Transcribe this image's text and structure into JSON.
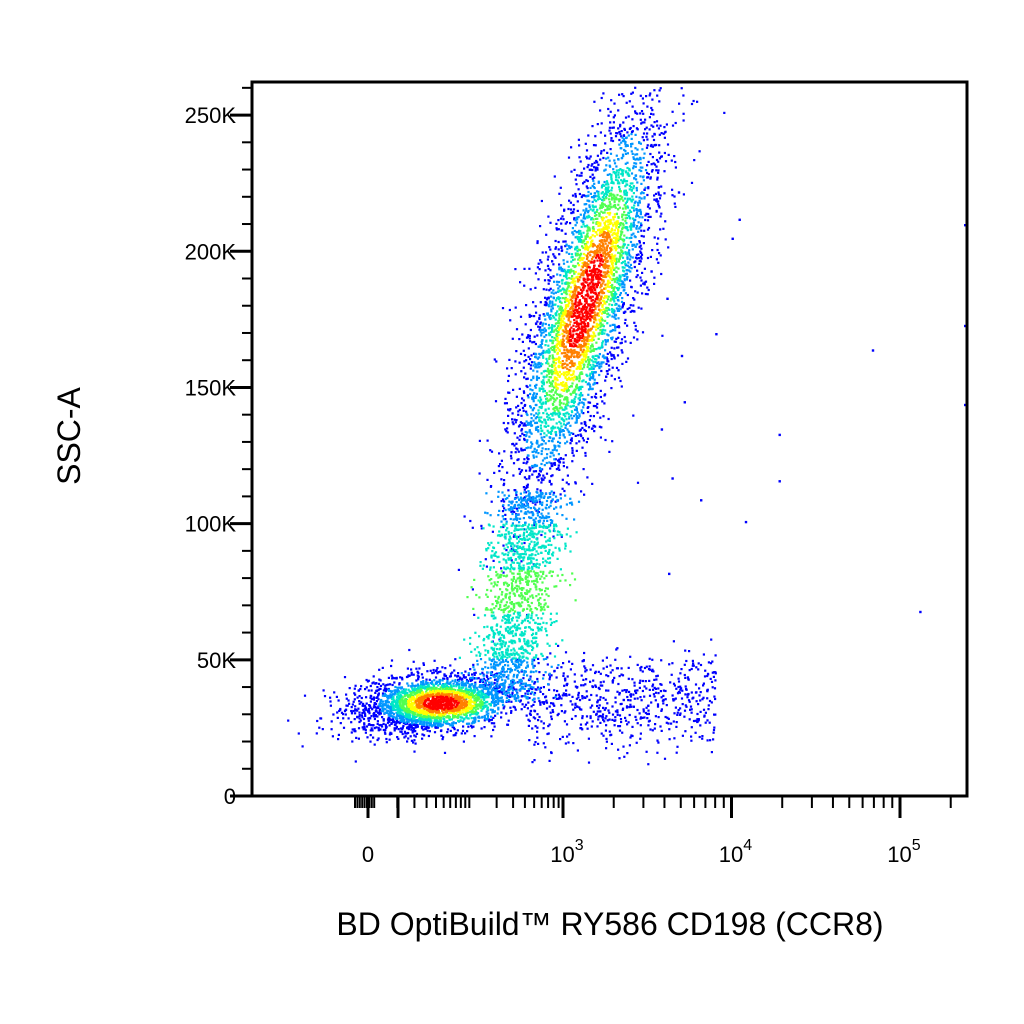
{
  "chart_data": {
    "type": "scatter",
    "subtype": "flow-cytometry-pseudocolor-density",
    "xlabel": "BD OptiBuild™ RY586 CD198 (CCR8)",
    "ylabel": "SSC-A",
    "x_scale": "biexponential",
    "y_scale": "linear",
    "ylim": [
      0,
      262144
    ],
    "xlim": [
      -300,
      262144
    ],
    "x_ticks": [
      {
        "value": 0,
        "label": "0"
      },
      {
        "value": 1000,
        "base": "10",
        "exp": "3"
      },
      {
        "value": 10000,
        "base": "10",
        "exp": "4"
      },
      {
        "value": 100000,
        "base": "10",
        "exp": "5"
      }
    ],
    "y_ticks": [
      {
        "value": 0,
        "label": "0"
      },
      {
        "value": 50000,
        "label": "50K"
      },
      {
        "value": 100000,
        "label": "100K"
      },
      {
        "value": 150000,
        "label": "150K"
      },
      {
        "value": 200000,
        "label": "200K"
      },
      {
        "value": 250000,
        "label": "250K"
      }
    ],
    "grid": false,
    "legend": "none",
    "colormap": [
      "#0000ff",
      "#0096ff",
      "#00e6c8",
      "#50ff50",
      "#ffff00",
      "#ff8000",
      "#ff0000"
    ],
    "populations": [
      {
        "x_center": 180,
        "y_center": 32000,
        "density": "high",
        "description_free": true
      },
      {
        "x_center": 550,
        "y_center": 75000,
        "density": "medium"
      },
      {
        "x_center": 1400,
        "y_center": 180000,
        "density": "highest"
      },
      {
        "x_center": 2500,
        "y_center": 34000,
        "density": "low"
      }
    ],
    "outliers": [
      {
        "x": 3000,
        "y": 223000
      },
      {
        "x": 4800,
        "y": 222000
      },
      {
        "x": 11000,
        "y": 212000
      },
      {
        "x": 10000,
        "y": 205000
      },
      {
        "x": 8000,
        "y": 170000
      },
      {
        "x": 19000,
        "y": 133000
      },
      {
        "x": 19000,
        "y": 116000
      },
      {
        "x": 12000,
        "y": 101000
      },
      {
        "x": 6500,
        "y": 109000
      },
      {
        "x": 68000,
        "y": 164000
      },
      {
        "x": 130000,
        "y": 68000
      },
      {
        "x": 250000,
        "y": 210000
      },
      {
        "x": 250000,
        "y": 173000
      },
      {
        "x": 250000,
        "y": 144000
      },
      {
        "x": 3800,
        "y": 135000
      },
      {
        "x": 4400,
        "y": 117000
      },
      {
        "x": 4200,
        "y": 82000
      },
      {
        "x": 5200,
        "y": 145000
      },
      {
        "x": 5000,
        "y": 162000
      },
      {
        "x": 3300,
        "y": 193000
      },
      {
        "x": 4100,
        "y": 183000
      }
    ]
  }
}
